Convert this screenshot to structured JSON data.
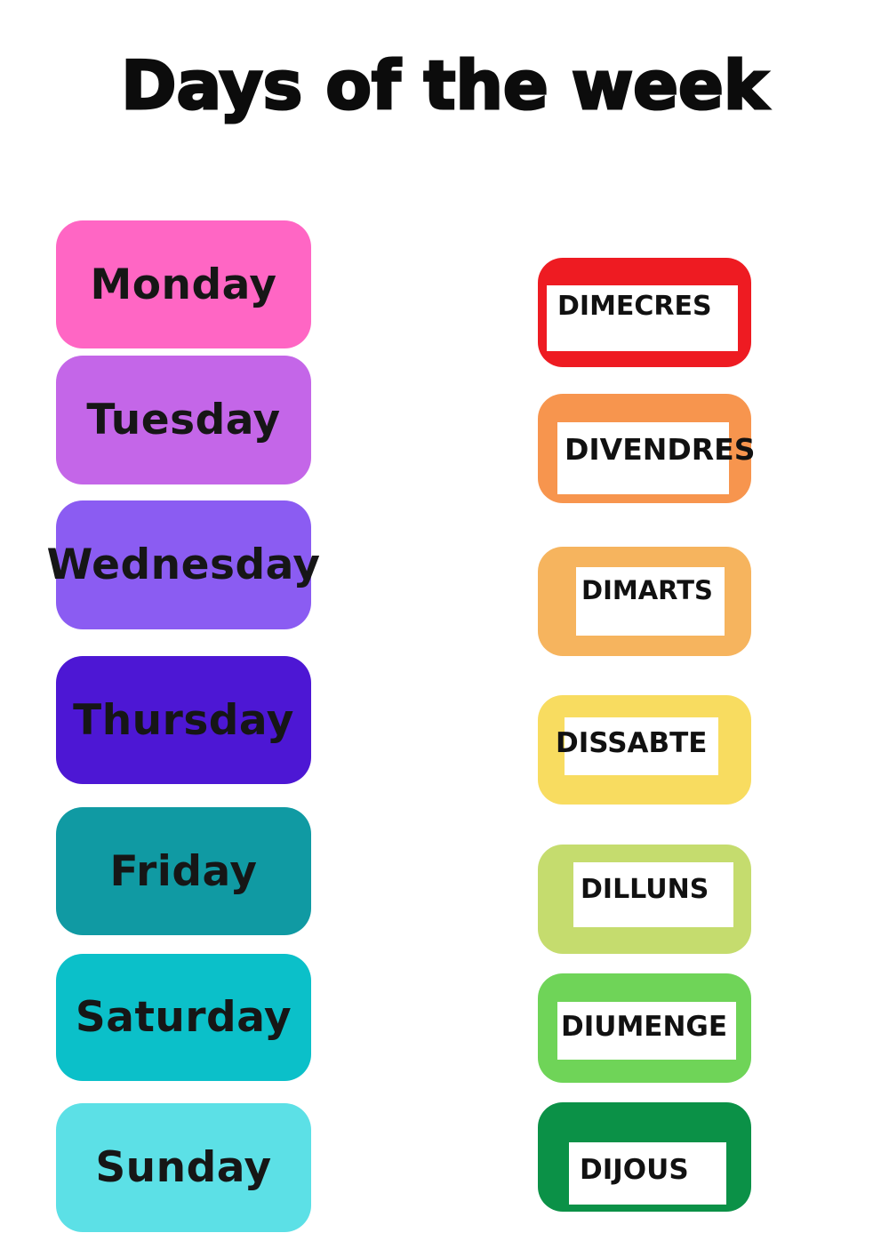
{
  "page": {
    "title": "Days of the week",
    "background_color": "#ffffff",
    "title_color": "#0c0c0c"
  },
  "left_column": {
    "items": [
      {
        "label": "Monday",
        "color": "#FF66C4"
      },
      {
        "label": "Tuesday",
        "color": "#C466E8"
      },
      {
        "label": "Wednesday",
        "color": "#8B5CF2"
      },
      {
        "label": "Thursday",
        "color": "#4D17D4"
      },
      {
        "label": "Friday",
        "color": "#109AA3"
      },
      {
        "label": "Saturday",
        "color": "#0BC0C9"
      },
      {
        "label": "Sunday",
        "color": "#5CE0E6"
      }
    ]
  },
  "right_column": {
    "items": [
      {
        "answer": "DIMECRES",
        "color": "#EE1B22"
      },
      {
        "answer": "DIVENDRES",
        "color": "#F7954E"
      },
      {
        "answer": "DIMARTS",
        "color": "#F6B45E"
      },
      {
        "answer": "DISSABTE",
        "color": "#F8DC60"
      },
      {
        "answer": "DILLUNS",
        "color": "#C5DC6E"
      },
      {
        "answer": "DIUMENGE",
        "color": "#6FD458"
      },
      {
        "answer": "DIJOUS",
        "color": "#0B9147"
      }
    ]
  }
}
